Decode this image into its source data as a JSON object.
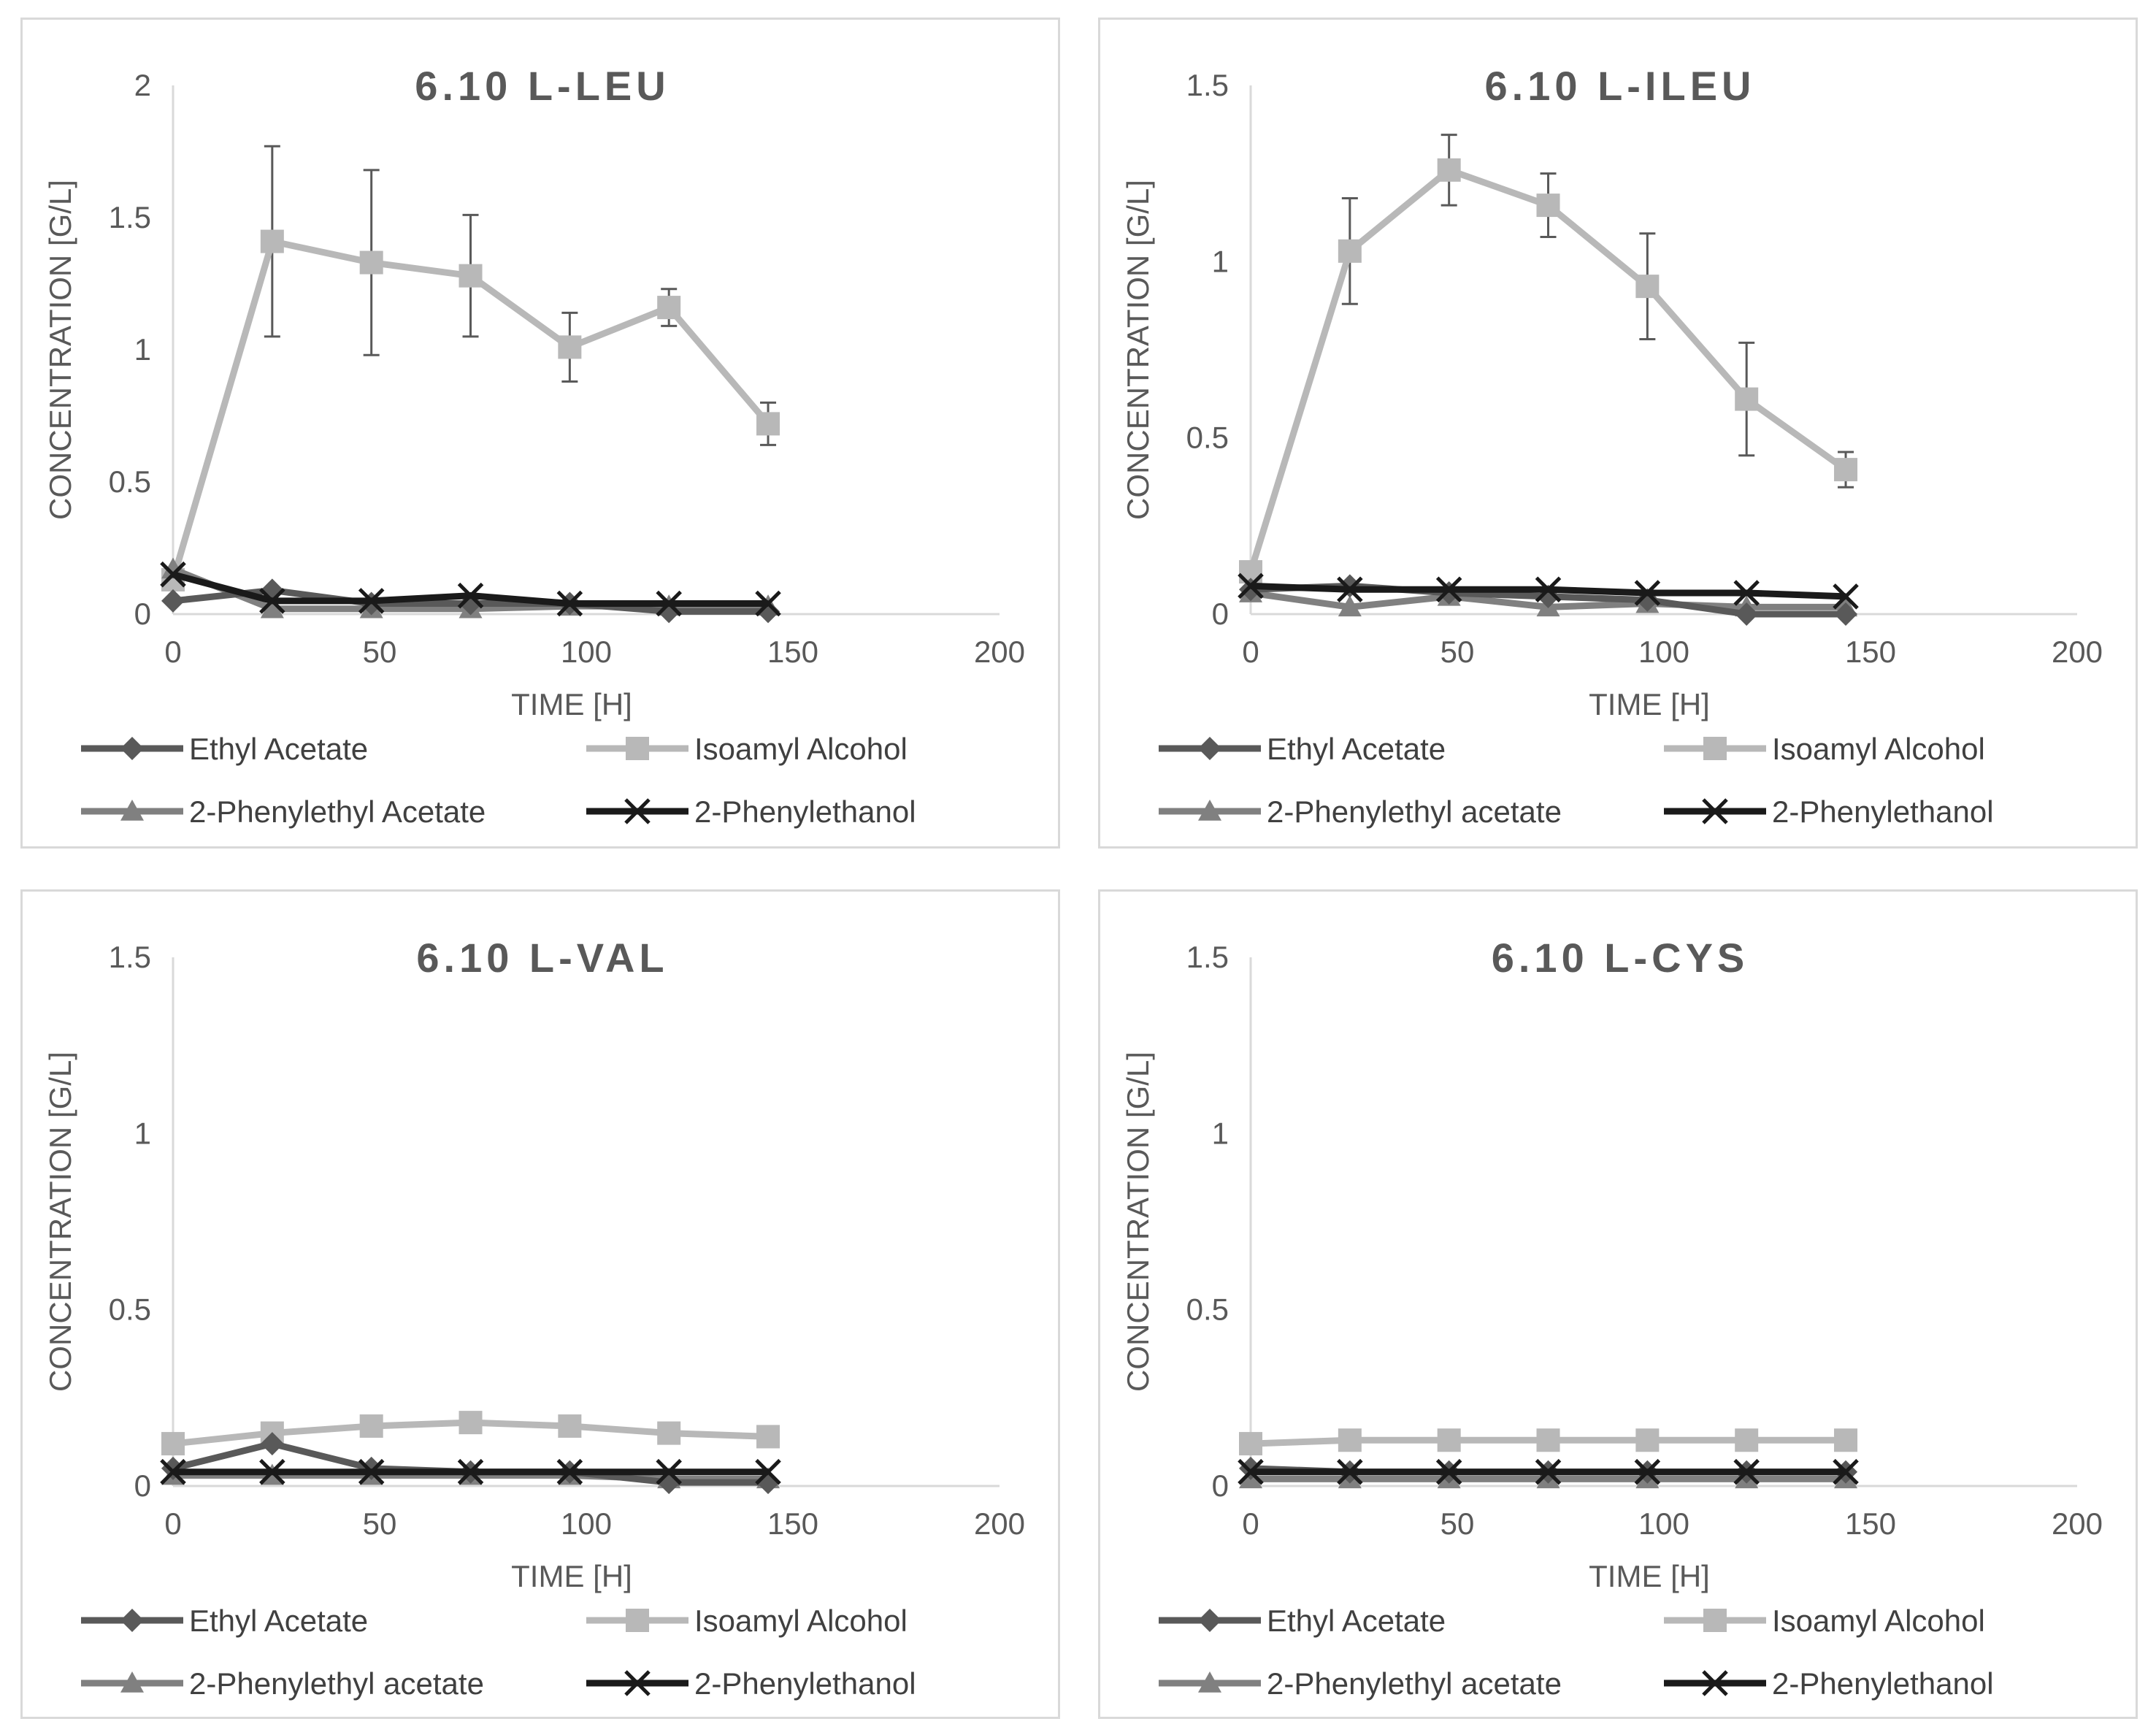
{
  "chart_data": [
    {
      "type": "line",
      "title": "6.10 L-LEU",
      "xlabel": "TIME [H]",
      "ylabel": "CONCENTRATION [G/L]",
      "xlim": [
        0,
        200
      ],
      "ylim": [
        0,
        2
      ],
      "xticks": [
        0,
        50,
        100,
        150,
        200
      ],
      "yticks": [
        0,
        0.5,
        1,
        1.5,
        2
      ],
      "ytick_labels": [
        "0",
        "0.5",
        "1",
        "1.5",
        "2"
      ],
      "x": [
        0,
        24,
        48,
        72,
        96,
        120,
        144
      ],
      "series": [
        {
          "name": "Ethyl Acetate",
          "marker": "diamond",
          "color": "#595959",
          "values": [
            0.05,
            0.09,
            0.04,
            0.04,
            0.04,
            0.01,
            0.01
          ]
        },
        {
          "name": "Isoamyl Alcohol",
          "marker": "square",
          "color": "#b8b8b8",
          "values": [
            0.13,
            1.41,
            1.33,
            1.28,
            1.01,
            1.16,
            0.72
          ],
          "error": [
            0,
            0.36,
            0.35,
            0.23,
            0.13,
            0.07,
            0.08
          ]
        },
        {
          "name": "2-Phenylethyl Acetate",
          "marker": "triangle",
          "color": "#808080",
          "values": [
            0.17,
            0.02,
            0.02,
            0.02,
            0.03,
            0.03,
            0.03
          ]
        },
        {
          "name": "2-Phenylethanol",
          "marker": "x",
          "color": "#1a1a1a",
          "values": [
            0.15,
            0.05,
            0.05,
            0.07,
            0.04,
            0.04,
            0.04
          ]
        }
      ]
    },
    {
      "type": "line",
      "title": "6.10 L-ILEU",
      "xlabel": "TIME [H]",
      "ylabel": "CONCENTRATION [G/L]",
      "xlim": [
        0,
        200
      ],
      "ylim": [
        0,
        1.5
      ],
      "xticks": [
        0,
        50,
        100,
        150,
        200
      ],
      "yticks": [
        0,
        0.5,
        1,
        1.5
      ],
      "ytick_labels": [
        "0",
        "0.5",
        "1",
        "1.5"
      ],
      "x": [
        0,
        24,
        48,
        72,
        96,
        120,
        144
      ],
      "series": [
        {
          "name": "Ethyl Acetate",
          "marker": "diamond",
          "color": "#595959",
          "values": [
            0.07,
            0.08,
            0.06,
            0.05,
            0.04,
            0.0,
            0.0
          ]
        },
        {
          "name": "Isoamyl Alcohol",
          "marker": "square",
          "color": "#b8b8b8",
          "values": [
            0.12,
            1.03,
            1.26,
            1.16,
            0.93,
            0.61,
            0.41
          ],
          "error": [
            0,
            0.15,
            0.1,
            0.09,
            0.15,
            0.16,
            0.05
          ]
        },
        {
          "name": "2-Phenylethyl acetate",
          "marker": "triangle",
          "color": "#808080",
          "values": [
            0.06,
            0.02,
            0.05,
            0.02,
            0.03,
            0.02,
            0.02
          ]
        },
        {
          "name": "2-Phenylethanol",
          "marker": "x",
          "color": "#1a1a1a",
          "values": [
            0.08,
            0.07,
            0.07,
            0.07,
            0.06,
            0.06,
            0.05
          ]
        }
      ]
    },
    {
      "type": "line",
      "title": "6.10 L-VAL",
      "xlabel": "TIME [H]",
      "ylabel": "CONCENTRATION [G/L]",
      "xlim": [
        0,
        200
      ],
      "ylim": [
        0,
        1.5
      ],
      "xticks": [
        0,
        50,
        100,
        150,
        200
      ],
      "yticks": [
        0,
        0.5,
        1,
        1.5
      ],
      "ytick_labels": [
        "0",
        "0.5",
        "1",
        "1.5"
      ],
      "x": [
        0,
        24,
        48,
        72,
        96,
        120,
        144
      ],
      "series": [
        {
          "name": "Ethyl Acetate",
          "marker": "diamond",
          "color": "#595959",
          "values": [
            0.05,
            0.12,
            0.05,
            0.04,
            0.04,
            0.01,
            0.01
          ]
        },
        {
          "name": "Isoamyl Alcohol",
          "marker": "square",
          "color": "#b8b8b8",
          "values": [
            0.12,
            0.15,
            0.17,
            0.18,
            0.17,
            0.15,
            0.14
          ]
        },
        {
          "name": "2-Phenylethyl acetate",
          "marker": "triangle",
          "color": "#808080",
          "values": [
            0.03,
            0.03,
            0.03,
            0.03,
            0.03,
            0.02,
            0.02
          ]
        },
        {
          "name": "2-Phenylethanol",
          "marker": "x",
          "color": "#1a1a1a",
          "values": [
            0.04,
            0.04,
            0.04,
            0.04,
            0.04,
            0.04,
            0.04
          ]
        }
      ]
    },
    {
      "type": "line",
      "title": "6.10 L-CYS",
      "xlabel": "TIME [H]",
      "ylabel": "CONCENTRATION [G/L]",
      "xlim": [
        0,
        200
      ],
      "ylim": [
        0,
        1.5
      ],
      "xticks": [
        0,
        50,
        100,
        150,
        200
      ],
      "yticks": [
        0,
        0.5,
        1,
        1.5
      ],
      "ytick_labels": [
        "0",
        "0.5",
        "1",
        "1.5"
      ],
      "x": [
        0,
        24,
        48,
        72,
        96,
        120,
        144
      ],
      "series": [
        {
          "name": "Ethyl Acetate",
          "marker": "diamond",
          "color": "#595959",
          "values": [
            0.05,
            0.04,
            0.04,
            0.04,
            0.04,
            0.04,
            0.04
          ]
        },
        {
          "name": "Isoamyl Alcohol",
          "marker": "square",
          "color": "#b8b8b8",
          "values": [
            0.12,
            0.13,
            0.13,
            0.13,
            0.13,
            0.13,
            0.13
          ]
        },
        {
          "name": "2-Phenylethyl acetate",
          "marker": "triangle",
          "color": "#808080",
          "values": [
            0.02,
            0.02,
            0.02,
            0.02,
            0.02,
            0.02,
            0.02
          ]
        },
        {
          "name": "2-Phenylethanol",
          "marker": "x",
          "color": "#1a1a1a",
          "values": [
            0.04,
            0.04,
            0.04,
            0.04,
            0.04,
            0.04,
            0.04
          ]
        }
      ]
    }
  ]
}
